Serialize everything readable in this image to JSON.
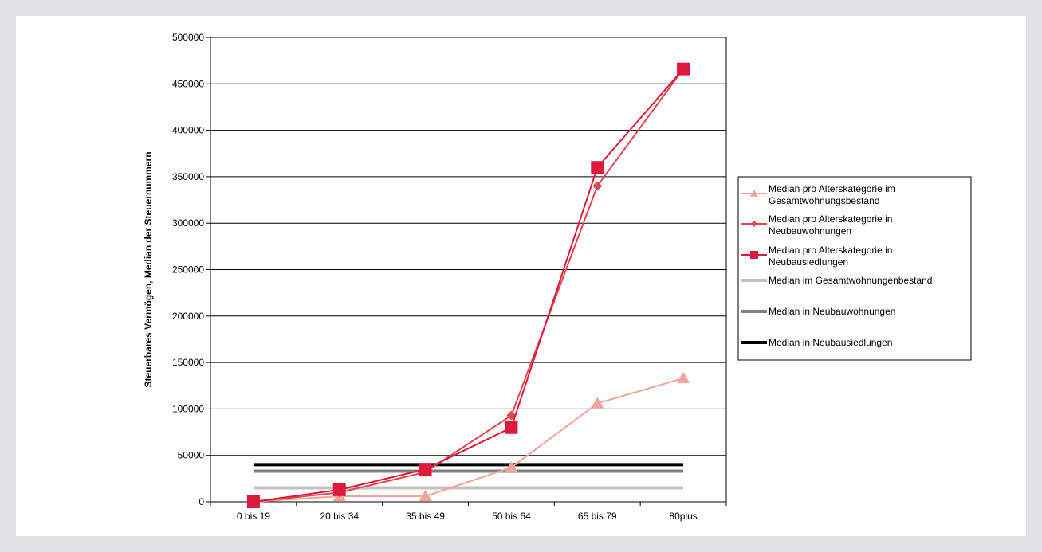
{
  "chart_data": {
    "type": "line",
    "title": "",
    "xlabel": "",
    "ylabel": "Steuerbares Vermögen, Median der Steuernummern",
    "ylim": [
      0,
      500000
    ],
    "yticks": [
      0,
      50000,
      100000,
      150000,
      200000,
      250000,
      300000,
      350000,
      400000,
      450000,
      500000
    ],
    "grid": "horizontal",
    "legend": "right",
    "categories": [
      "0 bis 19",
      "20 bis 34",
      "35 bis 49",
      "50 bis 64",
      "65 bis 79",
      "80plus"
    ],
    "series": [
      {
        "name": "Median pro Alterskategorie im Gesamtwohnungsbestand",
        "marker": "triangle",
        "color": "#f4a398",
        "values": [
          0,
          6000,
          6000,
          37000,
          106000,
          133000
        ]
      },
      {
        "name": "Median pro Alterskategorie in Neubauwohnungen",
        "marker": "diamond",
        "color": "#e0484f",
        "values": [
          0,
          10000,
          32000,
          93000,
          340000,
          466000
        ]
      },
      {
        "name": "Median pro Alterskategorie in Neubausiedlungen",
        "marker": "square",
        "color": "#de1a3c",
        "values": [
          0,
          13000,
          35000,
          80000,
          360000,
          466000
        ]
      },
      {
        "name": "Median im Gesamtwohnungenbestand",
        "marker": "none",
        "color": "#c2c2c2",
        "values": [
          15000,
          15000,
          15000,
          15000,
          15000,
          15000
        ]
      },
      {
        "name": "Median in Neubauwohnungen",
        "marker": "none",
        "color": "#808080",
        "values": [
          33000,
          33000,
          33000,
          33000,
          33000,
          33000
        ]
      },
      {
        "name": "Median in Neubausiedlungen",
        "marker": "none",
        "color": "#000000",
        "values": [
          40000,
          40000,
          40000,
          40000,
          40000,
          40000
        ]
      }
    ]
  }
}
